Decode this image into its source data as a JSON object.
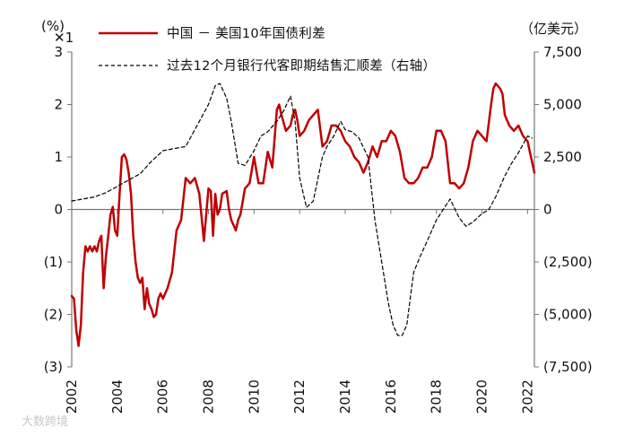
{
  "chart_data": {
    "type": "line",
    "title": "",
    "y_left_unit": "(%)",
    "y_right_unit": "（亿美元）",
    "corner_mark": "✕1",
    "watermark": "大数跨境",
    "x_range": [
      2002,
      2022.3
    ],
    "x_ticks": [
      2002,
      2004,
      2006,
      2008,
      2010,
      2012,
      2014,
      2016,
      2018,
      2020,
      2022
    ],
    "x_tick_labels": [
      "2002",
      "2004",
      "2006",
      "2008",
      "2010",
      "2012",
      "2014",
      "2016",
      "2018",
      "2020",
      "2022"
    ],
    "y_left_range": [
      -3,
      3
    ],
    "y_left_ticks": [
      -3,
      -2,
      -1,
      0,
      1,
      2,
      3
    ],
    "y_left_tick_labels": [
      "(3)",
      "(2)",
      "(1)",
      "0",
      "1",
      "2",
      "3"
    ],
    "y_right_range": [
      -7500,
      7500
    ],
    "y_right_ticks": [
      -7500,
      -5000,
      -2500,
      0,
      2500,
      5000,
      7500
    ],
    "y_right_tick_labels": [
      "(7,500)",
      "(5,000)",
      "(2,500)",
      "0",
      "2,500",
      "5,000",
      "7,500"
    ],
    "legend_position": "top",
    "series": [
      {
        "name": "中国 － 美国10年国债利差",
        "axis": "left",
        "color": "#c00000",
        "style": "solid",
        "x": [
          2002.0,
          2002.1,
          2002.2,
          2002.3,
          2002.4,
          2002.5,
          2002.6,
          2002.7,
          2002.8,
          2002.9,
          2003.0,
          2003.1,
          2003.2,
          2003.3,
          2003.4,
          2003.5,
          2003.6,
          2003.7,
          2003.8,
          2003.9,
          2004.0,
          2004.1,
          2004.2,
          2004.3,
          2004.4,
          2004.5,
          2004.6,
          2004.7,
          2004.8,
          2004.9,
          2005.0,
          2005.1,
          2005.2,
          2005.3,
          2005.4,
          2005.5,
          2005.6,
          2005.7,
          2005.8,
          2005.9,
          2006.0,
          2006.2,
          2006.4,
          2006.6,
          2006.8,
          2007.0,
          2007.2,
          2007.4,
          2007.6,
          2007.8,
          2008.0,
          2008.1,
          2008.2,
          2008.3,
          2008.4,
          2008.5,
          2008.6,
          2008.8,
          2008.9,
          2009.0,
          2009.1,
          2009.2,
          2009.3,
          2009.4,
          2009.6,
          2009.8,
          2010.0,
          2010.2,
          2010.4,
          2010.6,
          2010.8,
          2011.0,
          2011.1,
          2011.2,
          2011.4,
          2011.6,
          2011.7,
          2011.8,
          2011.9,
          2012.0,
          2012.2,
          2012.4,
          2012.6,
          2012.8,
          2013.0,
          2013.2,
          2013.4,
          2013.6,
          2013.8,
          2014.0,
          2014.2,
          2014.4,
          2014.6,
          2014.8,
          2015.0,
          2015.2,
          2015.4,
          2015.6,
          2015.8,
          2016.0,
          2016.2,
          2016.4,
          2016.6,
          2016.8,
          2017.0,
          2017.2,
          2017.4,
          2017.6,
          2017.8,
          2018.0,
          2018.2,
          2018.4,
          2018.6,
          2018.8,
          2019.0,
          2019.2,
          2019.4,
          2019.6,
          2019.8,
          2020.0,
          2020.2,
          2020.4,
          2020.5,
          2020.6,
          2020.8,
          2020.9,
          2021.0,
          2021.2,
          2021.4,
          2021.6,
          2021.8,
          2022.0,
          2022.1,
          2022.2,
          2022.3
        ],
        "values": [
          -1.65,
          -1.7,
          -2.3,
          -2.6,
          -2.2,
          -1.2,
          -0.7,
          -0.8,
          -0.7,
          -0.8,
          -0.7,
          -0.8,
          -0.6,
          -0.5,
          -1.5,
          -0.9,
          -0.5,
          -0.1,
          0.05,
          -0.4,
          -0.5,
          0.3,
          1.0,
          1.05,
          0.95,
          0.7,
          0.3,
          -0.5,
          -1.0,
          -1.3,
          -1.4,
          -1.3,
          -1.9,
          -1.5,
          -1.8,
          -1.9,
          -2.05,
          -2.0,
          -1.7,
          -1.6,
          -1.7,
          -1.5,
          -1.2,
          -0.4,
          -0.2,
          0.6,
          0.5,
          0.6,
          0.3,
          -0.6,
          0.4,
          0.35,
          -0.5,
          0.3,
          -0.1,
          0.0,
          0.3,
          0.35,
          0.0,
          -0.2,
          -0.3,
          -0.4,
          -0.2,
          -0.1,
          0.4,
          0.5,
          1.0,
          0.5,
          0.5,
          1.1,
          0.8,
          1.9,
          2.0,
          1.8,
          1.5,
          1.6,
          1.8,
          1.9,
          1.7,
          1.4,
          1.5,
          1.7,
          1.8,
          1.9,
          1.2,
          1.3,
          1.6,
          1.6,
          1.5,
          1.3,
          1.2,
          1.0,
          0.9,
          0.7,
          0.9,
          1.2,
          1.0,
          1.3,
          1.3,
          1.5,
          1.4,
          1.1,
          0.6,
          0.5,
          0.5,
          0.6,
          0.8,
          0.8,
          1.0,
          1.5,
          1.5,
          1.3,
          0.5,
          0.5,
          0.4,
          0.5,
          0.8,
          1.3,
          1.5,
          1.4,
          1.3,
          2.0,
          2.3,
          2.4,
          2.3,
          2.2,
          1.8,
          1.6,
          1.5,
          1.6,
          1.4,
          1.3,
          1.1,
          0.9,
          0.7
        ],
        "note": "values estimated from chart; see series2 for right-axis line"
      },
      {
        "name": "过去12个月银行代客即期结售汇顺差（右轴）",
        "axis": "right",
        "color": "#000000",
        "style": "dashed",
        "x": [
          2002.0,
          2002.5,
          2003.0,
          2003.5,
          2004.0,
          2004.5,
          2005.0,
          2005.5,
          2006.0,
          2006.5,
          2007.0,
          2007.5,
          2008.0,
          2008.3,
          2008.5,
          2008.8,
          2009.0,
          2009.3,
          2009.6,
          2010.0,
          2010.3,
          2010.6,
          2011.0,
          2011.3,
          2011.6,
          2011.8,
          2012.0,
          2012.3,
          2012.6,
          2012.9,
          2013.0,
          2013.2,
          2013.5,
          2013.8,
          2014.0,
          2014.3,
          2014.6,
          2015.0,
          2015.3,
          2015.6,
          2015.9,
          2016.1,
          2016.3,
          2016.5,
          2016.7,
          2017.0,
          2017.3,
          2017.6,
          2018.0,
          2018.3,
          2018.6,
          2019.0,
          2019.3,
          2019.6,
          2020.0,
          2020.3,
          2020.6,
          2021.0,
          2021.3,
          2021.6,
          2022.0,
          2022.2
        ],
        "values": [
          400,
          500,
          600,
          800,
          1100,
          1400,
          1700,
          2300,
          2800,
          2900,
          3000,
          4000,
          5000,
          5900,
          6000,
          5300,
          4200,
          2200,
          2100,
          2800,
          3500,
          3700,
          4200,
          4700,
          5400,
          4200,
          1500,
          100,
          400,
          2000,
          2500,
          3000,
          3500,
          4200,
          3800,
          3700,
          3400,
          2500,
          -500,
          -2500,
          -4500,
          -5500,
          -6000,
          -6000,
          -5500,
          -3000,
          -2200,
          -1500,
          -500,
          0,
          500,
          -400,
          -800,
          -600,
          -200,
          0,
          600,
          1600,
          2200,
          2700,
          3500,
          3400
        ]
      }
    ]
  }
}
